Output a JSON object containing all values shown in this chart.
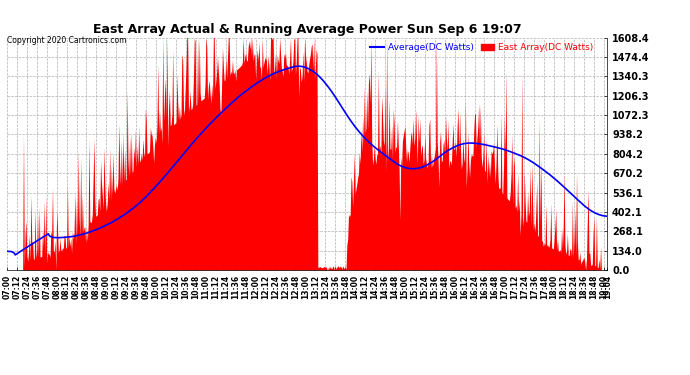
{
  "title": "East Array Actual & Running Average Power Sun Sep 6 19:07",
  "copyright": "Copyright 2020 Cartronics.com",
  "ylabel_right_ticks": [
    0.0,
    134.0,
    268.1,
    402.1,
    536.1,
    670.2,
    804.2,
    938.2,
    1072.3,
    1206.3,
    1340.3,
    1474.4,
    1608.4
  ],
  "ymax": 1608.4,
  "ymin": 0.0,
  "fill_color": "#ff0000",
  "avg_color": "#0000ff",
  "background_color": "#ffffff",
  "grid_color": "#b0b0b0",
  "title_color": "#000000",
  "legend_avg_label": "Average(DC Watts)",
  "legend_east_label": "East Array(DC Watts)",
  "legend_avg_color": "#0000ff",
  "legend_east_color": "#ff0000",
  "figwidth": 6.9,
  "figheight": 3.75,
  "dpi": 100
}
